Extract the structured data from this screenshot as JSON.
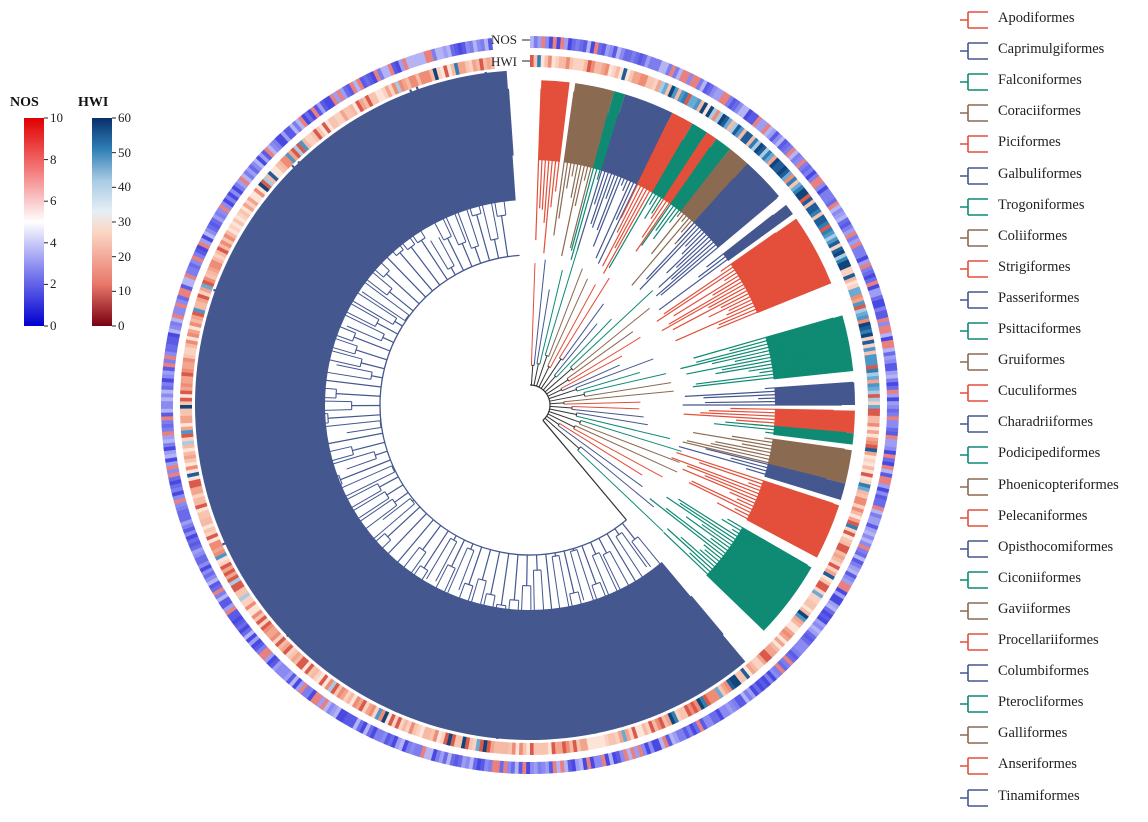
{
  "colors": {
    "branch_default": "#44578f",
    "clade_palette": [
      "#e34f3b",
      "#44578f",
      "#0f8a73",
      "#8b6a52"
    ],
    "nos_scale": [
      "#0000d0",
      "#7a7aee",
      "#ffffff",
      "#f37a7a",
      "#e00000"
    ],
    "hwi_scale": [
      "#7a0010",
      "#e8776a",
      "#fcd6c4",
      "#a8cbe3",
      "#2f7fb5",
      "#08306b"
    ]
  },
  "rings": {
    "nos_label": "NOS",
    "hwi_label": "HWI"
  },
  "nos_scale": {
    "title": "NOS",
    "ticks": [
      "10",
      "8",
      "6",
      "4",
      "2",
      "0"
    ]
  },
  "hwi_scale": {
    "title": "HWI",
    "ticks": [
      "60",
      "50",
      "40",
      "30",
      "20",
      "10",
      "0"
    ]
  },
  "legend": {
    "orders": [
      "Apodiformes",
      "Caprimulgiformes",
      "Falconiformes",
      "Coraciiformes",
      "Piciformes",
      "Galbuliformes",
      "Trogoniformes",
      "Coliiformes",
      "Strigiformes",
      "Passeriformes",
      "Psittaciformes",
      "Gruiformes",
      "Cuculiformes",
      "Charadriiformes",
      "Podicipediformes",
      "Phoenicopteriformes",
      "Pelecaniformes",
      "Opisthocomiformes",
      "Ciconiiformes",
      "Gaviiformes",
      "Procellariiformes",
      "Columbiformes",
      "Pterocliformes",
      "Galliformes",
      "Anseriformes",
      "Tinamiformes"
    ]
  }
}
